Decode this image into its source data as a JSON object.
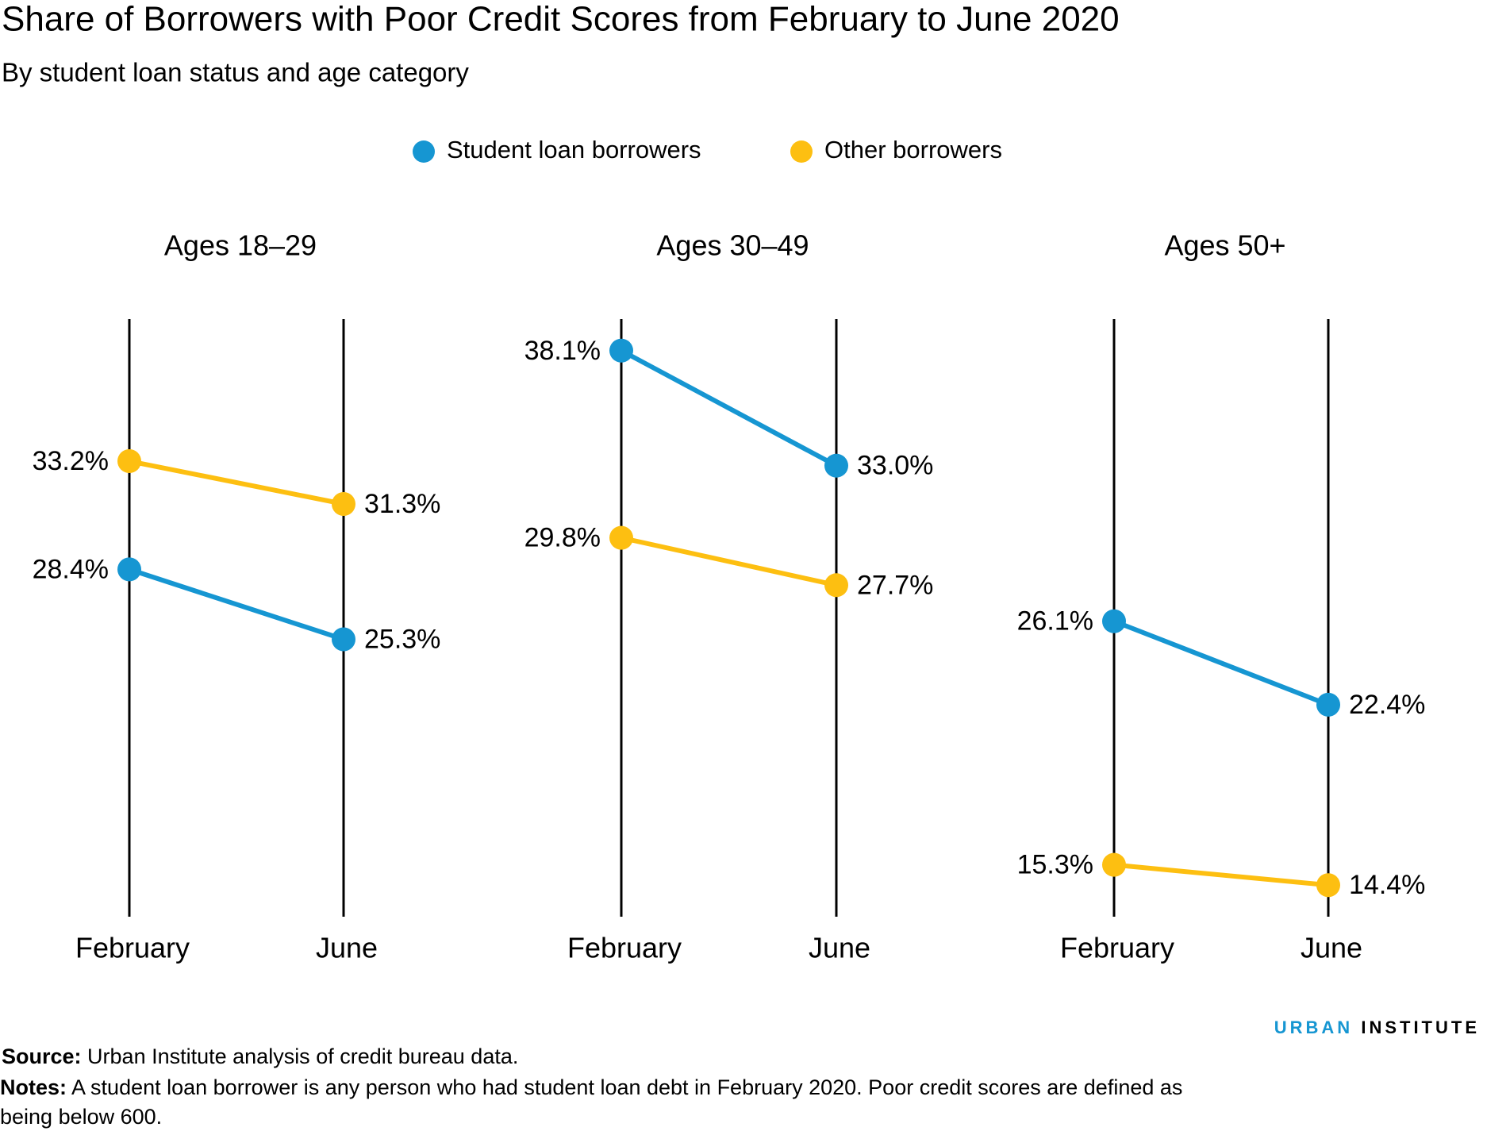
{
  "title": "Share of Borrowers with Poor Credit Scores from February to June 2020",
  "subtitle": "By student loan status and age category",
  "source": {
    "label": "Source:",
    "text": "Urban Institute analysis of credit bureau data."
  },
  "notes": {
    "label": "Notes:",
    "text": "A student loan borrower is any person who had student loan debt in February 2020. Poor credit scores are defined as being below 600."
  },
  "brand": {
    "first": "URBAN",
    "second": "INSTITUTE"
  },
  "chart_data": [
    {
      "type": "line",
      "title": "Ages 18–29",
      "categories": [
        "February",
        "June"
      ],
      "ylim": [
        13,
        39.5
      ],
      "series": [
        {
          "name": "Student loan borrowers",
          "color": "#1696d2",
          "values": [
            28.4,
            25.3
          ],
          "value_labels": [
            "28.4%",
            "25.3%"
          ]
        },
        {
          "name": "Other borrowers",
          "color": "#fdbf11",
          "values": [
            33.2,
            31.3
          ],
          "value_labels": [
            "33.2%",
            "31.3%"
          ]
        }
      ]
    },
    {
      "type": "line",
      "title": "Ages 30–49",
      "categories": [
        "February",
        "June"
      ],
      "ylim": [
        13,
        39.5
      ],
      "series": [
        {
          "name": "Student loan borrowers",
          "color": "#1696d2",
          "values": [
            38.1,
            33.0
          ],
          "value_labels": [
            "38.1%",
            "33.0%"
          ]
        },
        {
          "name": "Other borrowers",
          "color": "#fdbf11",
          "values": [
            29.8,
            27.7
          ],
          "value_labels": [
            "29.8%",
            "27.7%"
          ]
        }
      ]
    },
    {
      "type": "line",
      "title": "Ages 50+",
      "categories": [
        "February",
        "June"
      ],
      "ylim": [
        13,
        39.5
      ],
      "series": [
        {
          "name": "Student loan borrowers",
          "color": "#1696d2",
          "values": [
            26.1,
            22.4
          ],
          "value_labels": [
            "26.1%",
            "22.4%"
          ]
        },
        {
          "name": "Other borrowers",
          "color": "#fdbf11",
          "values": [
            15.3,
            14.4
          ],
          "value_labels": [
            "15.3%",
            "14.4%"
          ]
        }
      ]
    }
  ]
}
